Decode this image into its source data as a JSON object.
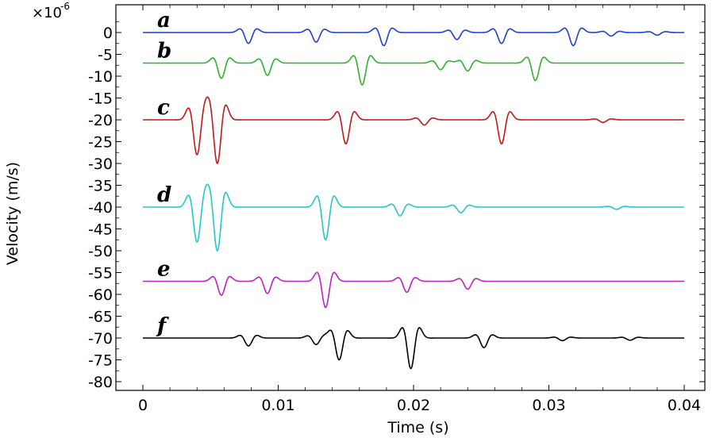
{
  "chart_data": {
    "type": "line",
    "xlabel": "Time (s)",
    "ylabel": "Velocity (m/s)",
    "y_multiplier_base": "×10",
    "y_multiplier_exp": "-6",
    "xlim": [
      0,
      0.04
    ],
    "ylim": [
      -82,
      4
    ],
    "x_ticks": [
      0,
      0.01,
      0.02,
      0.03,
      0.04
    ],
    "x_tick_labels": [
      "0",
      "0.01",
      "0.02",
      "0.03",
      "0.04"
    ],
    "y_ticks": [
      0,
      -5,
      -10,
      -15,
      -20,
      -25,
      -30,
      -35,
      -40,
      -45,
      -50,
      -55,
      -60,
      -65,
      -70,
      -75,
      -80
    ],
    "y_tick_labels": [
      "0",
      "-5",
      "-10",
      "-15",
      "-20",
      "-25",
      "-30",
      "-35",
      "-40",
      "-45",
      "-50",
      "-55",
      "-60",
      "-65",
      "-70",
      "-75",
      "-80"
    ],
    "grid": false,
    "series": [
      {
        "name": "a",
        "color": "#1f3fd0",
        "baseline": 0,
        "pulses": [
          [
            0.0078,
            2.5
          ],
          [
            0.0128,
            2.2
          ],
          [
            0.0178,
            3.0
          ],
          [
            0.0232,
            1.6
          ],
          [
            0.0265,
            2.5
          ],
          [
            0.0318,
            3.0
          ],
          [
            0.0346,
            0.8
          ],
          [
            0.038,
            0.6
          ]
        ]
      },
      {
        "name": "b",
        "color": "#30b030",
        "baseline": -7,
        "pulses": [
          [
            0.0058,
            3.5
          ],
          [
            0.0092,
            2.8
          ],
          [
            0.0162,
            5.0
          ],
          [
            0.022,
            1.5
          ],
          [
            0.024,
            1.8
          ],
          [
            0.029,
            4.0
          ]
        ]
      },
      {
        "name": "c",
        "color": "#c01818",
        "baseline": -20,
        "pulses": [
          [
            0.004,
            8.0
          ],
          [
            0.0055,
            10.0
          ],
          [
            0.015,
            5.5
          ],
          [
            0.0208,
            1.2
          ],
          [
            0.0265,
            5.5
          ],
          [
            0.034,
            0.6
          ]
        ]
      },
      {
        "name": "d",
        "color": "#20c8c8",
        "baseline": -40,
        "pulses": [
          [
            0.004,
            8.0
          ],
          [
            0.0055,
            10.0
          ],
          [
            0.0135,
            7.5
          ],
          [
            0.019,
            2.0
          ],
          [
            0.0235,
            1.3
          ],
          [
            0.035,
            0.5
          ]
        ]
      },
      {
        "name": "e",
        "color": "#c020c0",
        "baseline": -57,
        "pulses": [
          [
            0.0058,
            3.2
          ],
          [
            0.0092,
            2.8
          ],
          [
            0.0135,
            6.0
          ],
          [
            0.0195,
            2.5
          ],
          [
            0.024,
            1.8
          ]
        ]
      },
      {
        "name": "f",
        "color": "#000000",
        "baseline": -70,
        "pulses": [
          [
            0.0078,
            1.8
          ],
          [
            0.0128,
            1.5
          ],
          [
            0.0145,
            5.0
          ],
          [
            0.0198,
            7.0
          ],
          [
            0.0252,
            2.2
          ],
          [
            0.031,
            0.6
          ],
          [
            0.036,
            0.5
          ]
        ]
      }
    ]
  }
}
